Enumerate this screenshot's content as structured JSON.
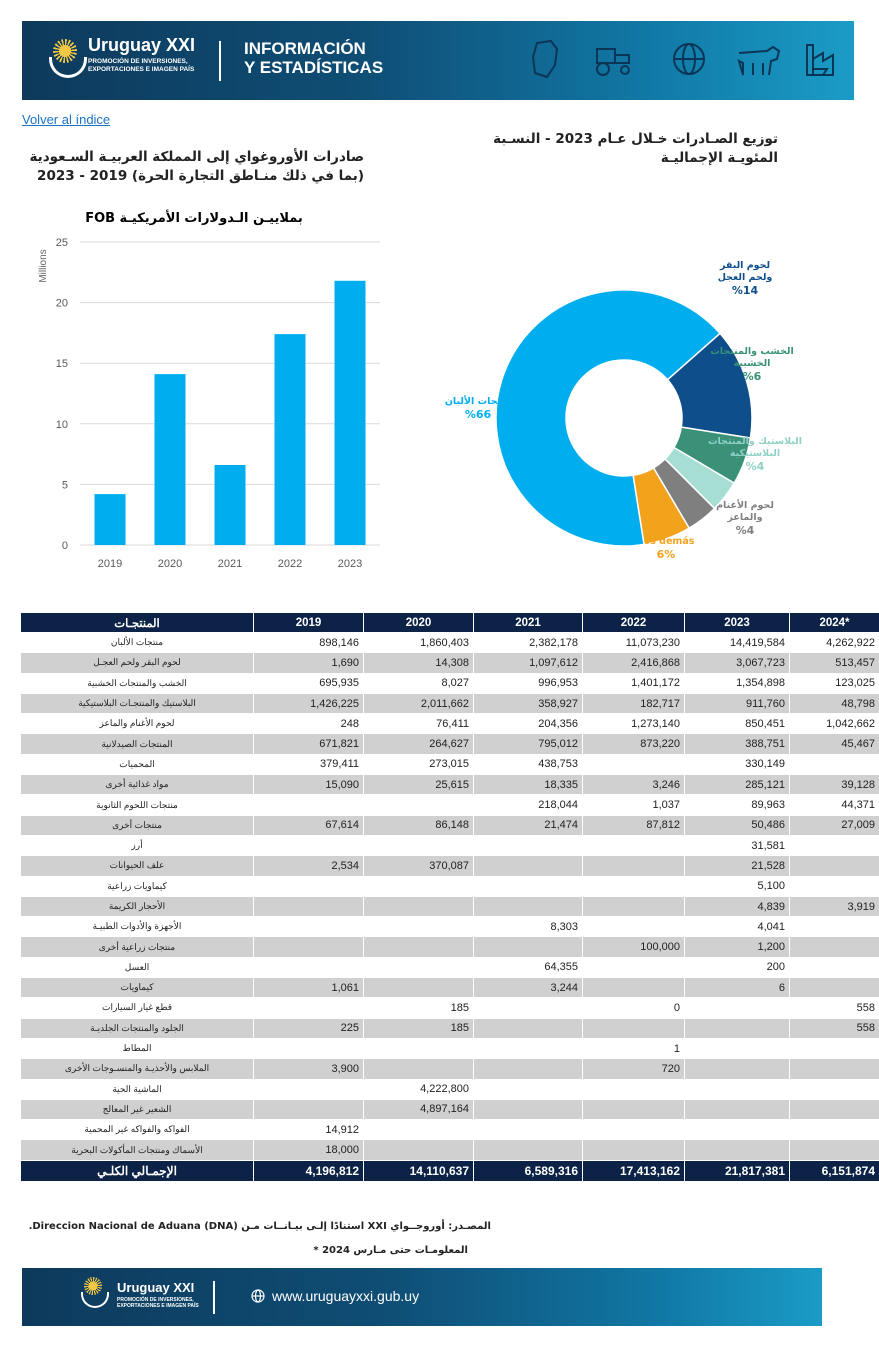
{
  "header": {
    "brand": "Uruguay XXI",
    "brand_sub": "PROMOCIÓN DE INVERSIONES, EXPORTACIONES E IMAGEN PAÍS",
    "title_line1": "INFORMACIÓN",
    "title_line2": "Y ESTADÍSTICAS",
    "icons": [
      "map-icon",
      "tractor-icon",
      "globe-icon",
      "cow-icon",
      "industry-icon"
    ]
  },
  "back_link": "Volver al índice",
  "left_title": "صادرات الأوروغواي إلى المملكة العربيـة السـعودية (بما في ذلك منـاطق التجارة الحرة) 2019 - 2023",
  "right_title": "توزيع الصـادرات خـلال عـام 2023 - النسـبة المئويـة الإجماليـة",
  "chart_data": [
    {
      "type": "bar",
      "title": "بملاييـن الـدولارات الأمريكيـة FOB",
      "ylabel": "Millions",
      "categories": [
        "2019",
        "2020",
        "2021",
        "2022",
        "2023"
      ],
      "values": [
        4.2,
        14.1,
        6.6,
        17.4,
        21.8
      ],
      "ylim": [
        0,
        25
      ],
      "yticks": [
        0,
        5,
        10,
        15,
        20,
        25
      ],
      "grid": true,
      "color": "#00aeef"
    },
    {
      "type": "pie",
      "variant": "donut",
      "slices": [
        {
          "label": "منتجات الألبان",
          "percent": "%66",
          "value": 66,
          "color": "#00aeef"
        },
        {
          "label": "لحوم البقر ولحم العجل",
          "percent": "%14",
          "value": 14,
          "color": "#0e4f8b"
        },
        {
          "label": "الخشب والمنتجات الخشبية",
          "percent": "%6",
          "value": 6,
          "color": "#3a9178"
        },
        {
          "label": "البلاستيك والمنتجات البلاستيكية",
          "percent": "%4",
          "value": 4,
          "color": "#a6ded4"
        },
        {
          "label": "لحوم الأغنام والماعز",
          "percent": "%4",
          "value": 4,
          "color": "#7f7f7f"
        },
        {
          "label": "Los demás",
          "percent": "6%",
          "value": 6,
          "color": "#f3a21c"
        }
      ]
    }
  ],
  "table": {
    "headers": [
      "المنتجـات",
      "2019",
      "2020",
      "2021",
      "2022",
      "2023",
      "2024*"
    ],
    "rows": [
      {
        "label": "منتجات الألبان",
        "values": [
          "898,146",
          "1,860,403",
          "2,382,178",
          "11,073,230",
          "14,419,584",
          "4,262,922"
        ]
      },
      {
        "label": "لحوم البقر ولحم العجـل",
        "values": [
          "1,690",
          "14,308",
          "1,097,612",
          "2,416,868",
          "3,067,723",
          "513,457"
        ]
      },
      {
        "label": "الخشب والمنتجات الخشبية",
        "values": [
          "695,935",
          "8,027",
          "996,953",
          "1,401,172",
          "1,354,898",
          "123,025"
        ]
      },
      {
        "label": "البلاستيك والمنتجـات البلاستيكية",
        "values": [
          "1,426,225",
          "2,011,662",
          "358,927",
          "182,717",
          "911,760",
          "48,798"
        ]
      },
      {
        "label": "لحوم الأغنام والماعز",
        "values": [
          "248",
          "76,411",
          "204,356",
          "1,273,140",
          "850,451",
          "1,042,662"
        ]
      },
      {
        "label": "المنتجات الصيدلانية",
        "values": [
          "671,821",
          "264,627",
          "795,012",
          "873,220",
          "388,751",
          "45,467"
        ]
      },
      {
        "label": "المحميات",
        "values": [
          "379,411",
          "273,015",
          "438,753",
          "",
          "330,149",
          ""
        ]
      },
      {
        "label": "مواد غذائية أخرى",
        "values": [
          "15,090",
          "25,615",
          "18,335",
          "3,246",
          "285,121",
          "39,128"
        ]
      },
      {
        "label": "منتجات اللحوم الثانوية",
        "values": [
          "",
          "",
          "218,044",
          "1,037",
          "89,963",
          "44,371"
        ]
      },
      {
        "label": "منتجات أخرى",
        "values": [
          "67,614",
          "86,148",
          "21,474",
          "87,812",
          "50,486",
          "27,009"
        ]
      },
      {
        "label": "أرز",
        "values": [
          "",
          "",
          "",
          "",
          "31,581",
          ""
        ]
      },
      {
        "label": "علف الحيوانات",
        "values": [
          "2,534",
          "370,087",
          "",
          "",
          "21,528",
          ""
        ]
      },
      {
        "label": "كيماويات زراعية",
        "values": [
          "",
          "",
          "",
          "",
          "5,100",
          ""
        ]
      },
      {
        "label": "الأحجار الكريمة",
        "values": [
          "",
          "",
          "",
          "",
          "4,839",
          "3,919"
        ]
      },
      {
        "label": "الأجهزة والأدوات الطبيـة",
        "values": [
          "",
          "",
          "8,303",
          "",
          "4,041",
          ""
        ]
      },
      {
        "label": "منتجات زراعية أخرى",
        "values": [
          "",
          "",
          "",
          "100,000",
          "1,200",
          ""
        ]
      },
      {
        "label": "العسل",
        "values": [
          "",
          "",
          "64,355",
          "",
          "200",
          ""
        ]
      },
      {
        "label": "كيماويات",
        "values": [
          "1,061",
          "",
          "3,244",
          "",
          "6",
          ""
        ]
      },
      {
        "label": "قطع غيار السيارات",
        "values": [
          "",
          "185",
          "",
          "0",
          "",
          "558"
        ]
      },
      {
        "label": "الجلود والمنتجات الجلديـة",
        "values": [
          "225",
          "185",
          "",
          "",
          "",
          "558"
        ]
      },
      {
        "label": "المطاط",
        "values": [
          "",
          "",
          "",
          "1",
          "",
          ""
        ]
      },
      {
        "label": "الملابس والأحذيـة والمنسـوجات الأخرى",
        "values": [
          "3,900",
          "",
          "",
          "720",
          "",
          ""
        ]
      },
      {
        "label": "الماشية الحية",
        "values": [
          "",
          "4,222,800",
          "",
          "",
          "",
          ""
        ]
      },
      {
        "label": "الشعير غير المعالج",
        "values": [
          "",
          "4,897,164",
          "",
          "",
          "",
          ""
        ]
      },
      {
        "label": "الفواكه والفواكه غير المحمية",
        "values": [
          "14,912",
          "",
          "",
          "",
          "",
          ""
        ]
      },
      {
        "label": "الأسماك ومنتجات المأكولات البحرية",
        "values": [
          "18,000",
          "",
          "",
          "",
          "",
          ""
        ]
      }
    ],
    "total": {
      "label": "الإجمـالي الكلـي",
      "values": [
        "4,196,812",
        "14,110,637",
        "6,589,316",
        "17,413,162",
        "21,817,381",
        "6,151,874"
      ]
    }
  },
  "source_line1": "المصـدر: أوروجــواي XXI استنادًا إلـى بيـانــات مـن Direccion Nacional de Aduana (DNA).",
  "source_line2": "المعلومـات حتى مـارس 2024 *",
  "footer": {
    "brand": "Uruguay XXI",
    "brand_sub": "PROMOCIÓN DE INVERSIONES, EXPORTACIONES E IMAGEN PAÍS",
    "url": "www.uruguayxxi.gub.uy"
  }
}
